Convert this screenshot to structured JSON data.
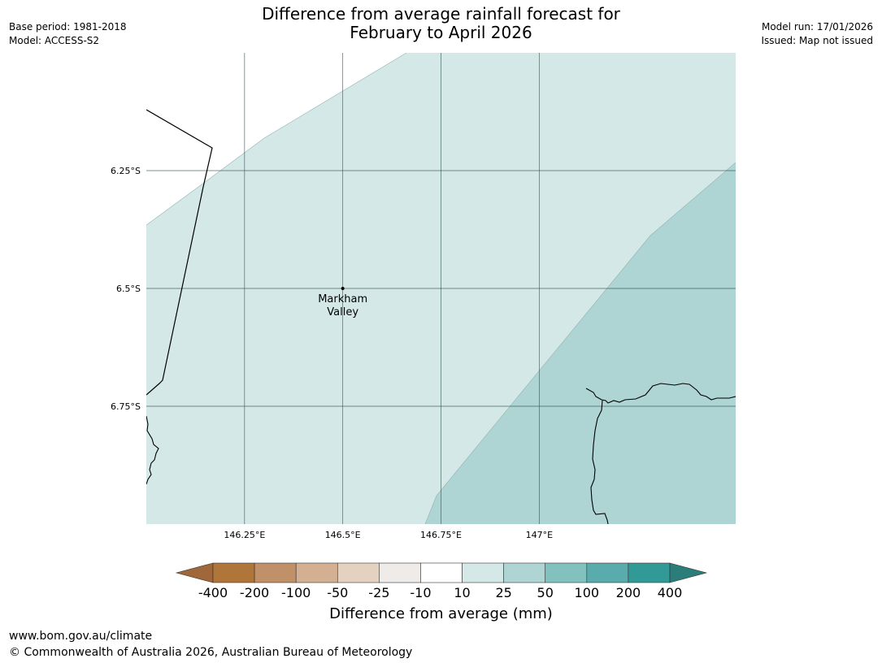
{
  "title": {
    "line1": "Difference from average rainfall forecast for",
    "line2": "February to April 2026"
  },
  "meta_left": {
    "base_period": "Base period: 1981-2018",
    "model": "Model: ACCESS-S2"
  },
  "meta_right": {
    "model_run": "Model run: 17/01/2026",
    "issued": "Issued: Map not issued"
  },
  "map": {
    "lon_range": [
      146.0,
      147.5
    ],
    "lat_range": [
      -6.0,
      -7.0
    ],
    "lat_ticks": [
      {
        "value": -6.25,
        "label": "6.25°S"
      },
      {
        "value": -6.5,
        "label": "6.5°S"
      },
      {
        "value": -6.75,
        "label": "6.75°S"
      }
    ],
    "lon_ticks": [
      {
        "value": 146.25,
        "label": "146.25°E"
      },
      {
        "value": 146.5,
        "label": "146.5°E"
      },
      {
        "value": 146.75,
        "label": "146.75°E"
      },
      {
        "value": 147.0,
        "label": "147°E"
      }
    ],
    "place": {
      "name_line1": "Markham",
      "name_line2": "Valley",
      "lon": 146.5,
      "lat": -6.5
    },
    "category_colors": {
      "10 to 25": "#d4e8e7",
      "25 to 50": "#aed4d4"
    }
  },
  "colorbar": {
    "labels": [
      "-400",
      "-200",
      "-100",
      "-50",
      "-25",
      "-10",
      "10",
      "25",
      "50",
      "100",
      "200",
      "400"
    ],
    "colors": [
      "#a0673a",
      "#b07538",
      "#c09068",
      "#d4b092",
      "#e5d1c0",
      "#efebe8",
      "#ffffff",
      "#d4e8e7",
      "#aed4d4",
      "#83c1bf",
      "#5aabab",
      "#329a96",
      "#2a7d79"
    ],
    "caption": "Difference from average (mm)"
  },
  "footer": {
    "url": "www.bom.gov.au/climate",
    "copyright": "© Commonwealth of Australia 2026, Australian Bureau of Meteorology"
  }
}
